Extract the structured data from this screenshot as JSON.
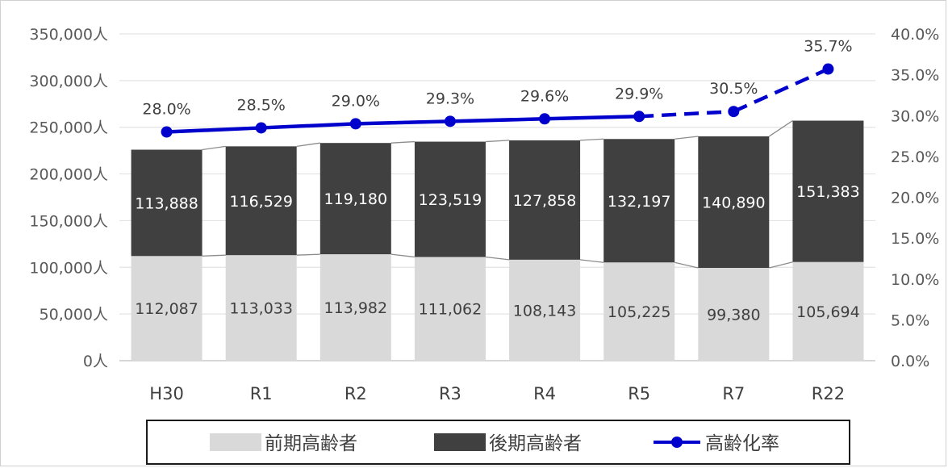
{
  "chart_data": {
    "type": "bar",
    "stacked": true,
    "categories": [
      "H30",
      "R1",
      "R2",
      "R3",
      "R4",
      "R5",
      "R7",
      "R22"
    ],
    "series": [
      {
        "name": "前期高齢者",
        "axis": "left",
        "color": "#d9d9d9",
        "values": [
          112087,
          113033,
          113982,
          111062,
          108143,
          105225,
          99380,
          105694
        ],
        "value_labels": [
          "112,087",
          "113,033",
          "113,982",
          "111,062",
          "108,143",
          "105,225",
          "99,380",
          "105,694"
        ]
      },
      {
        "name": "後期高齢者",
        "axis": "left",
        "color": "#404040",
        "values": [
          113888,
          116529,
          119180,
          123519,
          127858,
          132197,
          140890,
          151383
        ],
        "value_labels": [
          "113,888",
          "116,529",
          "119,180",
          "123,519",
          "127,858",
          "132,197",
          "140,890",
          "151,383"
        ]
      },
      {
        "name": "高齢化率",
        "type": "line",
        "axis": "right",
        "color": "#0000cc",
        "values": [
          28.0,
          28.5,
          29.0,
          29.3,
          29.6,
          29.9,
          30.5,
          35.7
        ],
        "value_labels": [
          "28.0%",
          "28.5%",
          "29.0%",
          "29.3%",
          "29.6%",
          "29.9%",
          "30.5%",
          "35.7%"
        ],
        "dashed_from_index": 5
      }
    ],
    "y_left": {
      "ylim": [
        0,
        350000
      ],
      "ticks": [
        "0人",
        "50,000人",
        "100,000人",
        "150,000人",
        "200,000人",
        "250,000人",
        "300,000人",
        "350,000人"
      ]
    },
    "y_right": {
      "ylim": [
        0,
        40
      ],
      "ticks": [
        "0.0%",
        "5.0%",
        "10.0%",
        "15.0%",
        "20.0%",
        "25.0%",
        "30.0%",
        "35.0%",
        "40.0%"
      ]
    },
    "grid": true,
    "legend_position": "bottom",
    "title": "",
    "xlabel": "",
    "ylabel": ""
  }
}
